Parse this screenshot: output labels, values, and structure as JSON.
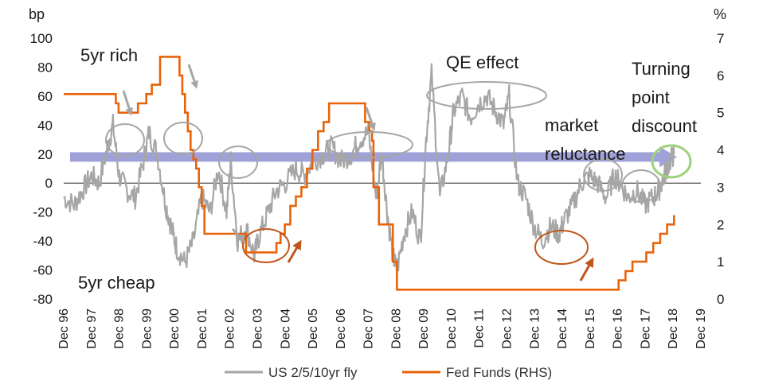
{
  "chart_data": {
    "type": "line",
    "left_axis": {
      "unit": "bp",
      "ylim": [
        -80,
        100
      ],
      "ticks": [
        -80,
        -60,
        -40,
        -20,
        0,
        20,
        40,
        60,
        80,
        100
      ]
    },
    "right_axis": {
      "unit": "%",
      "ylim": [
        0,
        7
      ],
      "ticks": [
        0,
        1,
        2,
        3,
        4,
        5,
        6,
        7
      ]
    },
    "x_categories": [
      "Dec 96",
      "Dec 97",
      "Dec 98",
      "Dec 99",
      "Dec 00",
      "Dec 01",
      "Dec 02",
      "Dec 03",
      "Dec 04",
      "Dec 05",
      "Dec 06",
      "Dec 07",
      "Dec 08",
      "Dec 09",
      "Dec 10",
      "Dec 11",
      "Dec 12",
      "Dec 13",
      "Dec 14",
      "Dec 15",
      "Dec 16",
      "Dec 17",
      "Dec 18",
      "Dec 19"
    ],
    "series": [
      {
        "name": "US 2/5/10yr fly",
        "axis": "left",
        "color": "#a6a6a6",
        "x": [
          1996.92,
          1997.3,
          1997.6,
          1997.92,
          1998.2,
          1998.5,
          1998.7,
          1998.92,
          1999.2,
          1999.5,
          1999.8,
          2000.0,
          2000.3,
          2000.6,
          2000.8,
          2001.0,
          2001.3,
          2001.6,
          2001.9,
          2002.2,
          2002.5,
          2002.8,
          2002.95,
          2003.2,
          2003.5,
          2003.8,
          2004.0,
          2004.3,
          2004.6,
          2004.92,
          2005.3,
          2005.6,
          2005.92,
          2006.3,
          2006.6,
          2006.92,
          2007.3,
          2007.6,
          2007.92,
          2008.2,
          2008.4,
          2008.6,
          2008.8,
          2008.95,
          2009.2,
          2009.5,
          2009.8,
          2010.0,
          2010.2,
          2010.5,
          2010.8,
          2011.0,
          2011.3,
          2011.6,
          2011.9,
          2012.2,
          2012.5,
          2012.8,
          2013.0,
          2013.3,
          2013.6,
          2013.9,
          2014.2,
          2014.5,
          2014.8,
          2015.0,
          2015.3,
          2015.6,
          2015.9,
          2016.2,
          2016.5,
          2016.8,
          2017.0,
          2017.3,
          2017.6,
          2017.9,
          2018.2,
          2018.4,
          2018.6,
          2018.8,
          2018.95
        ],
        "y": [
          -10,
          -15,
          -5,
          5,
          0,
          25,
          40,
          5,
          -5,
          -10,
          15,
          35,
          20,
          -15,
          -30,
          -45,
          -55,
          -40,
          -10,
          -20,
          10,
          -20,
          15,
          -40,
          -30,
          -50,
          -35,
          -20,
          -5,
          0,
          10,
          5,
          15,
          20,
          25,
          15,
          20,
          30,
          35,
          -10,
          20,
          -20,
          -50,
          -60,
          -35,
          -20,
          -40,
          30,
          75,
          -10,
          20,
          50,
          60,
          45,
          55,
          60,
          50,
          40,
          60,
          0,
          -10,
          -30,
          -40,
          -30,
          -35,
          -25,
          -15,
          0,
          5,
          0,
          -10,
          5,
          0,
          -10,
          -5,
          -15,
          -10,
          -5,
          5,
          15,
          20
        ]
      },
      {
        "name": "Fed Funds (RHS)",
        "axis": "right",
        "color": "#e8630a",
        "x": [
          1996.92,
          1998.7,
          1998.8,
          1998.9,
          1999.5,
          1999.6,
          1999.9,
          2000.1,
          2000.4,
          2001.0,
          2001.1,
          2001.2,
          2001.3,
          2001.4,
          2001.5,
          2001.6,
          2001.7,
          2001.8,
          2001.9,
          2002.0,
          2002.85,
          2003.5,
          2004.5,
          2004.6,
          2004.75,
          2004.9,
          2005.1,
          2005.3,
          2005.5,
          2005.7,
          2005.9,
          2006.1,
          2006.3,
          2006.5,
          2007.7,
          2007.8,
          2007.95,
          2008.05,
          2008.1,
          2008.3,
          2008.8,
          2008.95,
          2015.95,
          2016.95,
          2017.2,
          2017.45,
          2017.95,
          2018.2,
          2018.45,
          2018.7,
          2018.95
        ],
        "y": [
          5.5,
          5.5,
          5.25,
          5.0,
          5.0,
          5.25,
          5.5,
          5.75,
          6.5,
          6.5,
          6.0,
          5.5,
          5.0,
          4.5,
          4.0,
          3.75,
          3.5,
          3.0,
          2.5,
          1.75,
          1.75,
          1.25,
          1.25,
          1.5,
          1.75,
          2.0,
          2.5,
          2.75,
          3.0,
          3.5,
          4.0,
          4.5,
          4.75,
          5.25,
          5.25,
          4.75,
          4.5,
          4.25,
          3.0,
          2.0,
          1.0,
          0.25,
          0.25,
          0.5,
          0.75,
          1.0,
          1.25,
          1.5,
          1.75,
          2.0,
          2.25
        ]
      }
    ],
    "band": {
      "y": 18,
      "color": "#9fa1d9"
    },
    "annotations": {
      "rich": "5yr rich",
      "cheap": "5yr cheap",
      "qe": "QE effect",
      "market1": "market",
      "market2": "reluctance",
      "turning1": "Turning",
      "turning2": "point",
      "turning3": "discount"
    },
    "legend_position": "bottom"
  }
}
